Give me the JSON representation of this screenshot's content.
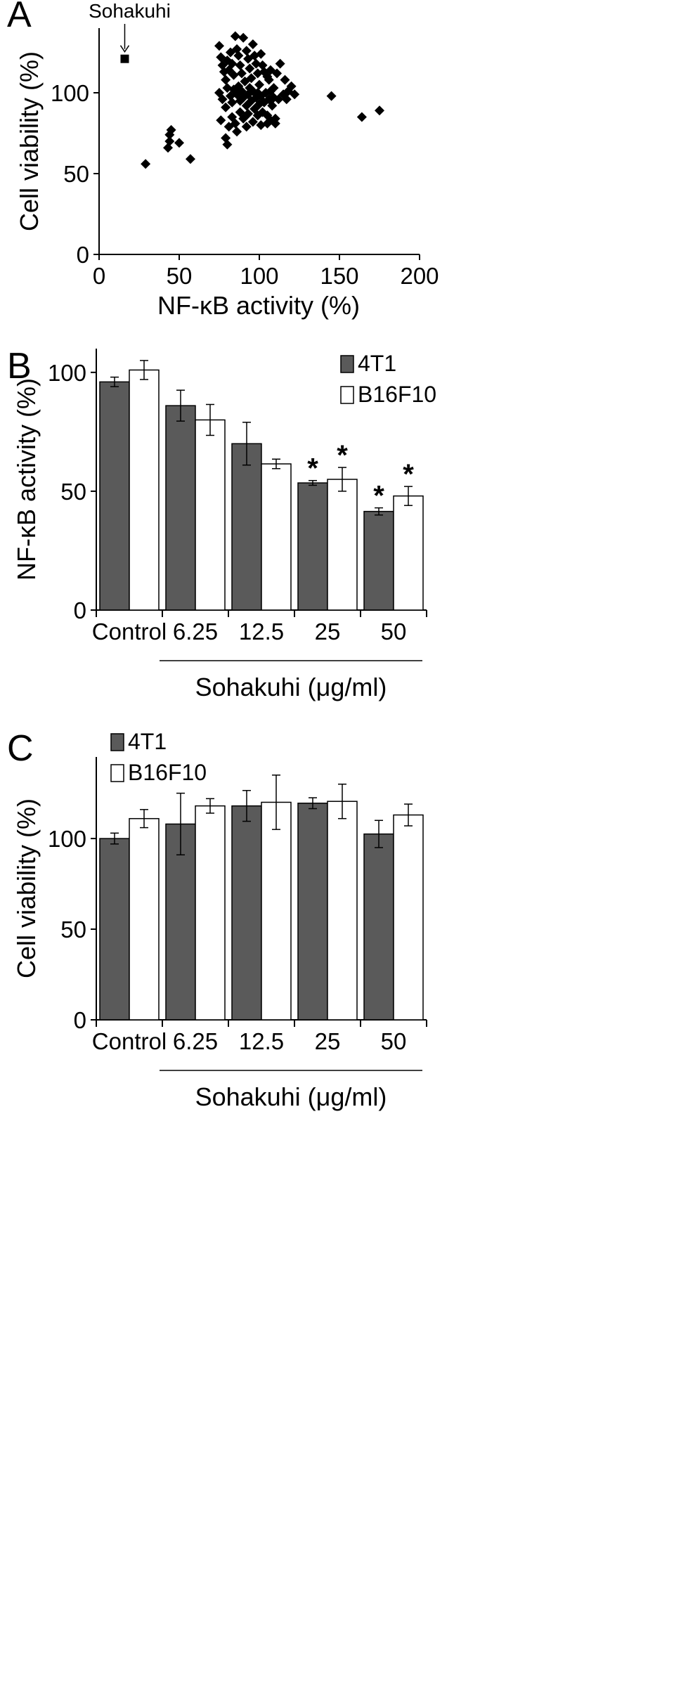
{
  "chart_data": [
    {
      "panel": "A",
      "type": "scatter",
      "xlabel": "NF-κB activity (%)",
      "ylabel": "Cell viability (%)",
      "xlim": [
        0,
        200
      ],
      "ylim": [
        0,
        140
      ],
      "xticks": [
        0,
        50,
        100,
        150,
        200
      ],
      "yticks": [
        0,
        50,
        100
      ],
      "grid": false,
      "annotation": {
        "text": "Sohakuhi",
        "x": 16,
        "y": 121
      },
      "highlight": {
        "marker": "square",
        "x": 16,
        "y": 121
      },
      "points": [
        [
          29,
          56
        ],
        [
          43,
          66
        ],
        [
          44,
          70
        ],
        [
          44,
          74
        ],
        [
          45,
          77
        ],
        [
          50,
          69
        ],
        [
          57,
          59
        ],
        [
          75,
          129
        ],
        [
          76,
          122
        ],
        [
          77,
          117
        ],
        [
          78,
          113
        ],
        [
          79,
          108
        ],
        [
          80,
          120
        ],
        [
          81,
          114
        ],
        [
          82,
          125
        ],
        [
          83,
          118
        ],
        [
          84,
          111
        ],
        [
          85,
          135
        ],
        [
          86,
          127
        ],
        [
          87,
          123
        ],
        [
          88,
          117
        ],
        [
          89,
          112
        ],
        [
          90,
          134
        ],
        [
          92,
          126
        ],
        [
          93,
          121
        ],
        [
          94,
          115
        ],
        [
          95,
          109
        ],
        [
          96,
          130
        ],
        [
          97,
          123
        ],
        [
          98,
          118
        ],
        [
          99,
          112
        ],
        [
          100,
          105
        ],
        [
          101,
          124
        ],
        [
          102,
          117
        ],
        [
          103,
          113
        ],
        [
          105,
          110
        ],
        [
          106,
          108
        ],
        [
          107,
          114
        ],
        [
          109,
          103
        ],
        [
          111,
          112
        ],
        [
          113,
          118
        ],
        [
          116,
          108
        ],
        [
          118,
          101
        ],
        [
          120,
          104
        ],
        [
          122,
          99
        ],
        [
          75,
          100
        ],
        [
          77,
          96
        ],
        [
          79,
          91
        ],
        [
          80,
          103
        ],
        [
          82,
          98
        ],
        [
          83,
          94
        ],
        [
          84,
          102
        ],
        [
          86,
          99
        ],
        [
          87,
          104
        ],
        [
          88,
          95
        ],
        [
          89,
          101
        ],
        [
          90,
          97
        ],
        [
          91,
          107
        ],
        [
          92,
          92
        ],
        [
          93,
          99
        ],
        [
          94,
          103
        ],
        [
          95,
          95
        ],
        [
          96,
          101
        ],
        [
          97,
          90
        ],
        [
          98,
          97
        ],
        [
          99,
          100
        ],
        [
          100,
          93
        ],
        [
          101,
          98
        ],
        [
          102,
          88
        ],
        [
          103,
          94
        ],
        [
          104,
          100
        ],
        [
          105,
          86
        ],
        [
          106,
          96
        ],
        [
          107,
          101
        ],
        [
          108,
          92
        ],
        [
          109,
          97
        ],
        [
          110,
          84
        ],
        [
          112,
          96
        ],
        [
          115,
          99
        ],
        [
          117,
          96
        ],
        [
          76,
          83
        ],
        [
          79,
          72
        ],
        [
          80,
          68
        ],
        [
          81,
          79
        ],
        [
          83,
          85
        ],
        [
          85,
          81
        ],
        [
          86,
          76
        ],
        [
          88,
          88
        ],
        [
          90,
          84
        ],
        [
          92,
          79
        ],
        [
          93,
          87
        ],
        [
          96,
          82
        ],
        [
          99,
          86
        ],
        [
          101,
          80
        ],
        [
          105,
          81
        ],
        [
          107,
          83
        ],
        [
          110,
          81
        ],
        [
          145,
          98
        ],
        [
          164,
          85
        ],
        [
          175,
          89
        ]
      ]
    },
    {
      "panel": "B",
      "type": "bar",
      "ylabel": "NF-κB activity (%)",
      "xlabel": "Sohakuhi (μg/ml)",
      "categories": [
        "Control",
        "6.25",
        "12.5",
        "25",
        "50"
      ],
      "ylim": [
        0,
        110
      ],
      "yticks": [
        0,
        50,
        100
      ],
      "legend": "top-right",
      "series": [
        {
          "name": "4T1",
          "color": "#5a5a5a",
          "values": [
            96,
            86,
            70,
            53.5,
            41.5
          ],
          "errors": [
            2,
            6.5,
            9,
            1,
            1.5
          ],
          "significant": [
            false,
            false,
            false,
            true,
            true
          ]
        },
        {
          "name": "B16F10",
          "color": "#ffffff",
          "values": [
            101,
            80,
            61.5,
            55,
            48
          ],
          "errors": [
            4,
            6.5,
            2,
            5,
            4
          ],
          "significant": [
            false,
            false,
            false,
            true,
            true
          ]
        }
      ],
      "significance_marker": "*"
    },
    {
      "panel": "C",
      "type": "bar",
      "ylabel": "Cell viability (%)",
      "xlabel": "Sohakuhi (μg/ml)",
      "categories": [
        "Control",
        "6.25",
        "12.5",
        "25",
        "50"
      ],
      "ylim": [
        0,
        145
      ],
      "yticks": [
        0,
        50,
        100
      ],
      "legend": "top-left",
      "series": [
        {
          "name": "4T1",
          "color": "#5a5a5a",
          "values": [
            100,
            108,
            118,
            119.5,
            102.5
          ],
          "errors": [
            3,
            17,
            8.5,
            3,
            7.5
          ]
        },
        {
          "name": "B16F10",
          "color": "#ffffff",
          "values": [
            111,
            118,
            120,
            120.5,
            113
          ],
          "errors": [
            5,
            4,
            15,
            9.5,
            6
          ]
        }
      ]
    }
  ]
}
